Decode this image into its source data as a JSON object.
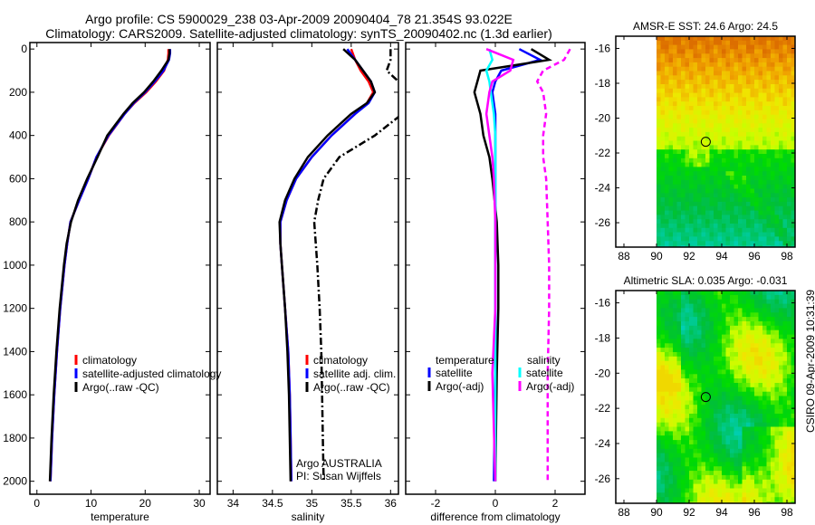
{
  "figure": {
    "title_line1": "Argo profile: CS 5900029_238 03-Apr-2009 20090404_78 21.354S 93.022E",
    "title_line2": "Climatology: CARS2009. Satellite-adjusted climatology: synTS_20090402.nc (1.3d earlier)",
    "credit": "CSIRO 09-Apr-2009 10:31:39"
  },
  "chart_data": [
    {
      "type": "line",
      "id": "temp",
      "xlabel": "temperature",
      "xlim": [
        -1.3,
        32
      ],
      "ylim": [
        2060,
        -30
      ],
      "xticks": [
        0,
        10,
        20,
        30
      ],
      "yticks": [
        0,
        200,
        400,
        600,
        800,
        1000,
        1200,
        1400,
        1600,
        1800,
        2000
      ],
      "legend": [
        "climatology",
        "satellite-adjusted climatology",
        "Argo(..raw -QC)"
      ],
      "depth": [
        0,
        20,
        50,
        100,
        150,
        200,
        250,
        300,
        400,
        500,
        600,
        700,
        800,
        900,
        1000,
        1200,
        1400,
        1600,
        1800,
        2000
      ],
      "series": [
        {
          "name": "climatology",
          "color": "#ff0000",
          "dash": "",
          "values": [
            24.3,
            24.3,
            24.2,
            23.5,
            22,
            20.2,
            18,
            16.2,
            13.3,
            11,
            9.5,
            7.8,
            6.2,
            5.6,
            5.1,
            4.3,
            3.7,
            3.2,
            2.8,
            2.5
          ]
        },
        {
          "name": "satellite-adjusted climatology",
          "color": "#0000ff",
          "dash": "",
          "values": [
            24.6,
            24.6,
            24.4,
            23.4,
            21.8,
            20,
            17.9,
            16.2,
            13.2,
            11,
            9.5,
            7.8,
            6.2,
            5.6,
            5.1,
            4.3,
            3.7,
            3.2,
            2.8,
            2.5
          ]
        },
        {
          "name": "Argo(..raw -QC)",
          "color": "#000000",
          "dash": "",
          "values": [
            24.5,
            24.5,
            24.3,
            23,
            21.5,
            19.8,
            17.7,
            16,
            13,
            11.2,
            9.3,
            7.6,
            6.3,
            5.5,
            5,
            4.2,
            3.6,
            3.1,
            2.7,
            2.4
          ]
        }
      ]
    },
    {
      "type": "line",
      "id": "sal",
      "xlabel": "salinity",
      "xlim": [
        33.8,
        36.1
      ],
      "ylim": [
        2060,
        -30
      ],
      "xticks": [
        34,
        34.5,
        35,
        35.5,
        36
      ],
      "yticks": [],
      "legend": [
        "climatology",
        "satellite adj. clim.",
        "Argo(..raw -QC)"
      ],
      "annotation": [
        "Argo AUSTRALIA",
        "PI: Susan Wijffels"
      ],
      "depth": [
        0,
        50,
        100,
        150,
        200,
        250,
        300,
        400,
        500,
        600,
        700,
        800,
        900,
        1000,
        1200,
        1400,
        1600,
        1800,
        2000
      ],
      "series": [
        {
          "name": "climatology",
          "color": "#ff0000",
          "dash": "",
          "values": [
            35.5,
            35.55,
            35.62,
            35.72,
            35.78,
            35.7,
            35.55,
            35.25,
            35.0,
            34.8,
            34.68,
            34.6,
            34.6,
            34.62,
            34.66,
            34.7,
            34.72,
            34.73,
            34.74
          ]
        },
        {
          "name": "satellite adj. clim.",
          "color": "#0000ff",
          "dash": "",
          "values": [
            35.45,
            35.55,
            35.65,
            35.75,
            35.8,
            35.72,
            35.55,
            35.25,
            35.0,
            34.8,
            34.68,
            34.6,
            34.6,
            34.62,
            34.66,
            34.7,
            34.72,
            34.73,
            34.74
          ]
        },
        {
          "name": "Argo",
          "color": "#000000",
          "dash": "",
          "values": [
            35.4,
            35.55,
            35.65,
            35.75,
            35.8,
            35.7,
            35.5,
            35.2,
            34.95,
            34.78,
            34.66,
            34.59,
            34.6,
            34.62,
            34.66,
            34.69,
            34.71,
            34.72,
            34.73
          ]
        },
        {
          "name": "Argo(..raw -QC)",
          "color": "#000000",
          "dash": "8 3 2 3",
          "values": [
            36.0,
            36.0,
            35.95,
            36.1,
            36.3,
            36.3,
            36.15,
            35.8,
            35.35,
            35.15,
            35.08,
            35.03,
            35.05,
            35.07,
            35.1,
            35.12,
            35.13,
            35.14,
            35.15
          ]
        }
      ]
    },
    {
      "type": "line",
      "id": "diff",
      "xlabel": "difference from climatology",
      "xlim": [
        -3,
        3
      ],
      "ylim": [
        2060,
        -30
      ],
      "xticks": [
        -2,
        0,
        2
      ],
      "yticks": [],
      "legend_temperature": {
        "heading": "temperature",
        "items": [
          "satellite",
          "Argo(-adj)"
        ]
      },
      "legend_salinity": {
        "heading": "salinity",
        "items": [
          "satellite",
          "Argo(-adj)"
        ]
      },
      "depth": [
        0,
        50,
        100,
        150,
        200,
        300,
        400,
        500,
        600,
        800,
        1000,
        1200,
        1500,
        2000
      ],
      "series": [
        {
          "name": "temperature satellite",
          "color": "#0000ff",
          "dash": "",
          "values": [
            0.8,
            1.5,
            0.2,
            0,
            -0.1,
            0,
            0,
            0,
            0,
            0,
            0,
            0,
            0,
            -0.05
          ]
        },
        {
          "name": "temperature Argo(-adj)",
          "color": "#000000",
          "dash": "",
          "values": [
            1.2,
            1.8,
            -0.5,
            -0.6,
            -0.7,
            -0.5,
            -0.4,
            -0.2,
            -0.1,
            0.05,
            0.1,
            0.1,
            0.05,
            0
          ]
        },
        {
          "name": "salinity satellite",
          "color": "#00ffff",
          "dash": "",
          "values": [
            -0.2,
            -0.1,
            -0.3,
            -0.2,
            -0.15,
            -0.05,
            0,
            0,
            0,
            0,
            0,
            0,
            0,
            0
          ]
        },
        {
          "name": "salinity Argo",
          "color": "#ff00ff",
          "dash": "",
          "values": [
            -0.3,
            0.6,
            0.5,
            -0.1,
            -0.2,
            -0.3,
            -0.2,
            -0.1,
            -0.05,
            0,
            0,
            0,
            -0.1,
            0
          ]
        },
        {
          "name": "salinity Argo(-adj)",
          "color": "#ff00ff",
          "dash": "6 4",
          "values": [
            2.5,
            2.3,
            1.6,
            1.4,
            1.6,
            1.7,
            1.6,
            1.6,
            1.7,
            1.75,
            1.8,
            1.8,
            1.75,
            1.75
          ]
        }
      ]
    },
    {
      "type": "heatmap",
      "id": "sst",
      "title": "AMSR-E SST: 24.6 Argo: 24.5",
      "xlim": [
        87.5,
        98.5
      ],
      "ylim": [
        -27.4,
        -15.3
      ],
      "xticks": [
        88,
        90,
        92,
        94,
        96,
        98
      ],
      "yticks": [
        -16,
        -18,
        -20,
        -22,
        -24,
        -26
      ],
      "data_lon_range": [
        90,
        98.3
      ],
      "marker": {
        "lon": 93.022,
        "lat": -21.354
      }
    },
    {
      "type": "heatmap",
      "id": "sla",
      "title": "Altimetric SLA: 0.035 Argo: -0.031",
      "xlim": [
        87.5,
        98.5
      ],
      "ylim": [
        -27.4,
        -15.3
      ],
      "xticks": [
        88,
        90,
        92,
        94,
        96,
        98
      ],
      "yticks": [
        -16,
        -18,
        -20,
        -22,
        -24,
        -26
      ],
      "data_lon_range": [
        90,
        98.3
      ],
      "marker": {
        "lon": 93.022,
        "lat": -21.354
      }
    }
  ]
}
